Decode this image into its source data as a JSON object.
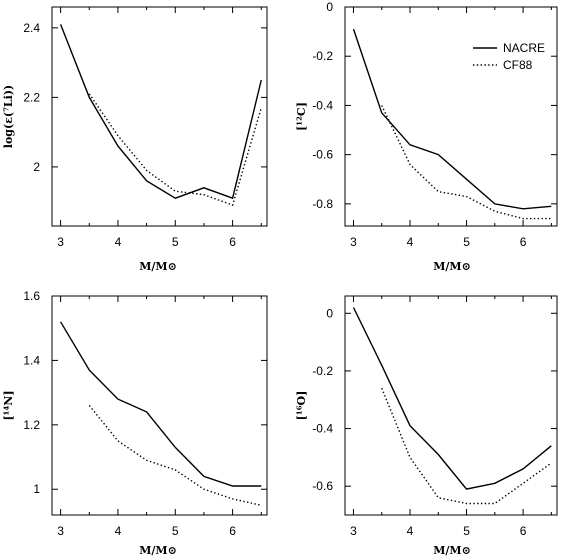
{
  "legend": {
    "placement": "top-right of upper-right panel",
    "entries": [
      {
        "label": "NACRE",
        "style": "solid"
      },
      {
        "label": "CF88",
        "style": "dotted"
      }
    ]
  },
  "chart_data": [
    {
      "type": "line",
      "id": "li",
      "title": "",
      "xlabel": "M/M⊙",
      "ylabel": "log(ε(⁷Li))",
      "xlim": [
        2.85,
        6.6
      ],
      "ylim": [
        1.83,
        2.46
      ],
      "xticks": [
        3,
        4,
        5,
        6
      ],
      "yticks": [
        2,
        2.2,
        2.4
      ],
      "ytick_labels": [
        "2",
        "2.2",
        "2.4"
      ],
      "series": [
        {
          "name": "NACRE",
          "style": "solid",
          "x": [
            3,
            3.5,
            4,
            4.5,
            5,
            5.5,
            6,
            6.5
          ],
          "y": [
            2.41,
            2.2,
            2.06,
            1.96,
            1.91,
            1.94,
            1.91,
            2.25
          ]
        },
        {
          "name": "CF88",
          "style": "dotted",
          "x": [
            3.5,
            4,
            4.5,
            5,
            5.5,
            6,
            6.5
          ],
          "y": [
            2.21,
            2.09,
            1.99,
            1.93,
            1.92,
            1.89,
            2.17
          ]
        }
      ]
    },
    {
      "type": "line",
      "id": "c12",
      "title": "",
      "xlabel": "M/M⊙",
      "ylabel": "[¹²C]",
      "xlim": [
        2.85,
        6.6
      ],
      "ylim": [
        -0.89,
        0.0
      ],
      "xticks": [
        3,
        4,
        5,
        6
      ],
      "yticks": [
        0,
        -0.2,
        -0.4,
        -0.6,
        -0.8
      ],
      "ytick_labels": [
        "0",
        "-0.2",
        "-0.4",
        "-0.6",
        "-0.8"
      ],
      "series": [
        {
          "name": "NACRE",
          "style": "solid",
          "x": [
            3,
            3.5,
            4,
            4.5,
            5,
            5.5,
            6,
            6.5
          ],
          "y": [
            -0.09,
            -0.43,
            -0.56,
            -0.6,
            -0.7,
            -0.8,
            -0.82,
            -0.81
          ]
        },
        {
          "name": "CF88",
          "style": "dotted",
          "x": [
            3.5,
            4,
            4.5,
            5,
            5.5,
            6,
            6.5
          ],
          "y": [
            -0.4,
            -0.64,
            -0.75,
            -0.77,
            -0.83,
            -0.86,
            -0.86
          ]
        }
      ]
    },
    {
      "type": "line",
      "id": "n14",
      "title": "",
      "xlabel": "M/M⊙",
      "ylabel": "[¹⁴N]",
      "xlim": [
        2.85,
        6.6
      ],
      "ylim": [
        0.92,
        1.6
      ],
      "xticks": [
        3,
        4,
        5,
        6
      ],
      "yticks": [
        1,
        1.2,
        1.4,
        1.6
      ],
      "ytick_labels": [
        "1",
        "1.2",
        "1.4",
        "1.6"
      ],
      "series": [
        {
          "name": "NACRE",
          "style": "solid",
          "x": [
            3,
            3.5,
            4,
            4.5,
            5,
            5.5,
            6,
            6.5
          ],
          "y": [
            1.52,
            1.37,
            1.28,
            1.24,
            1.13,
            1.04,
            1.01,
            1.01
          ]
        },
        {
          "name": "CF88",
          "style": "dotted",
          "x": [
            3.5,
            4,
            4.5,
            5,
            5.5,
            6,
            6.5
          ],
          "y": [
            1.26,
            1.15,
            1.09,
            1.06,
            1.0,
            0.97,
            0.95
          ]
        }
      ]
    },
    {
      "type": "line",
      "id": "o16",
      "title": "",
      "xlabel": "M/M⊙",
      "ylabel": "[¹⁶O]",
      "xlim": [
        2.85,
        6.6
      ],
      "ylim": [
        -0.7,
        0.06
      ],
      "xticks": [
        3,
        4,
        5,
        6
      ],
      "yticks": [
        0,
        -0.2,
        -0.4,
        -0.6
      ],
      "ytick_labels": [
        "0",
        "-0.2",
        "-0.4",
        "-0.6"
      ],
      "series": [
        {
          "name": "NACRE",
          "style": "solid",
          "x": [
            3,
            3.5,
            4,
            4.5,
            5,
            5.5,
            6,
            6.5
          ],
          "y": [
            0.02,
            -0.18,
            -0.39,
            -0.49,
            -0.61,
            -0.59,
            -0.54,
            -0.46
          ]
        },
        {
          "name": "CF88",
          "style": "dotted",
          "x": [
            3.5,
            4,
            4.5,
            5,
            5.5,
            6,
            6.5
          ],
          "y": [
            -0.26,
            -0.5,
            -0.64,
            -0.66,
            -0.66,
            -0.59,
            -0.52
          ]
        }
      ]
    }
  ]
}
